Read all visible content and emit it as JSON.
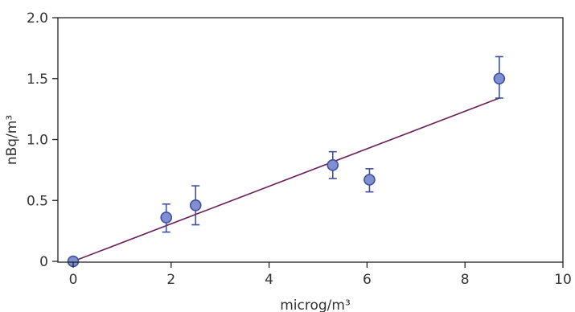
{
  "chart_data": {
    "type": "scatter",
    "title": "",
    "xlabel": "microg/m³",
    "ylabel": "nBq/m³",
    "xlim": [
      0,
      10
    ],
    "ylim": [
      0,
      2.0
    ],
    "x_ticks": [
      0,
      2,
      4,
      6,
      8,
      10
    ],
    "x_tick_labels": [
      "0",
      "2",
      "4",
      "6",
      "8",
      "10"
    ],
    "y_ticks": [
      0,
      0.5,
      1.0,
      1.5,
      2.0
    ],
    "y_tick_labels": [
      "0",
      "0.5",
      "1.0",
      "1.5",
      "2.0"
    ],
    "grid": false,
    "points": [
      {
        "x": 0.0,
        "y": 0.0,
        "err_low": 0.0,
        "err_high": 0.0
      },
      {
        "x": 1.9,
        "y": 0.36,
        "err_low": 0.12,
        "err_high": 0.11
      },
      {
        "x": 2.5,
        "y": 0.46,
        "err_low": 0.16,
        "err_high": 0.16
      },
      {
        "x": 5.3,
        "y": 0.79,
        "err_low": 0.11,
        "err_high": 0.11
      },
      {
        "x": 6.05,
        "y": 0.67,
        "err_low": 0.1,
        "err_high": 0.09
      },
      {
        "x": 8.7,
        "y": 1.5,
        "err_low": 0.16,
        "err_high": 0.18
      }
    ],
    "fit_line": {
      "x": [
        0,
        8.7
      ],
      "y": [
        0,
        1.34
      ]
    },
    "colors": {
      "marker_fill": "#7f8fd1",
      "marker_stroke": "#3d4f9e",
      "error_bar": "#3d4f9e",
      "fit_line": "#6b1f5a",
      "axis": "#222222",
      "text": "#333333"
    }
  }
}
